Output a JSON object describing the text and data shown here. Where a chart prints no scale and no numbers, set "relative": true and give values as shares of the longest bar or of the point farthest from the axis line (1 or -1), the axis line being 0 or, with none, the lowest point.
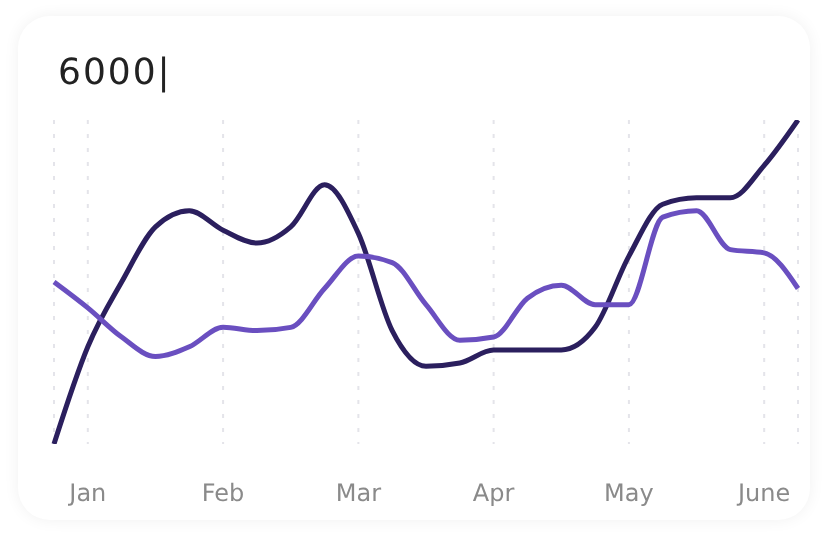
{
  "chart_data": {
    "type": "line",
    "title": "6000|",
    "relative": true,
    "categories": [
      null,
      "Jan",
      null,
      null,
      null,
      "Feb",
      null,
      null,
      null,
      "Mar",
      null,
      null,
      null,
      "Apr",
      null,
      null,
      null,
      "May",
      null,
      null,
      null,
      "June",
      null
    ],
    "grid": "x",
    "marker": "none",
    "line_style": "solid",
    "series": [
      {
        "color": "#2b1f5e",
        "values": [
          0,
          0.3,
          0.5,
          0.67,
          0.72,
          0.66,
          0.62,
          0.67,
          0.8,
          0.65,
          0.35,
          0.24,
          0.25,
          0.29,
          0.29,
          0.29,
          0.36,
          0.58,
          0.74,
          0.76,
          0.76,
          0.86,
          1
        ]
      },
      {
        "color": "#6a4fc0",
        "values": [
          0.5,
          0.42,
          0.33,
          0.27,
          0.3,
          0.36,
          0.35,
          0.36,
          0.48,
          0.58,
          0.56,
          0.43,
          0.32,
          0.33,
          0.45,
          0.49,
          0.43,
          0.43,
          0.7,
          0.72,
          0.6,
          0.59,
          0.48
        ]
      }
    ]
  }
}
